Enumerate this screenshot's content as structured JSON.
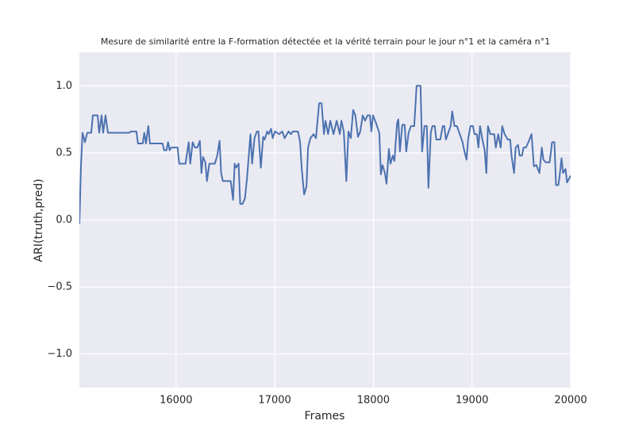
{
  "chart_data": {
    "type": "line",
    "title": "Mesure de similarité entre la F-formation détectée et la vérité terrain pour le jour n°1 et la caméra n°1",
    "xlabel": "Frames",
    "ylabel": "ARI(truth,pred)",
    "grid": true,
    "xlim": [
      15020,
      20000
    ],
    "ylim": [
      -1.25,
      1.25
    ],
    "xticks": [
      16000,
      17000,
      18000,
      19000,
      20000
    ],
    "yticks": [
      {
        "value": -1.0,
        "label": "−1.0"
      },
      {
        "value": -0.5,
        "label": "−0.5"
      },
      {
        "value": 0.0,
        "label": "0.0"
      },
      {
        "value": 0.5,
        "label": "0.5"
      },
      {
        "value": 1.0,
        "label": "1.0"
      }
    ],
    "x": [
      15020,
      15036,
      15052,
      15076,
      15100,
      15140,
      15157,
      15205,
      15221,
      15245,
      15261,
      15285,
      15309,
      15502,
      15526,
      15542,
      15598,
      15614,
      15662,
      15678,
      15695,
      15719,
      15735,
      15863,
      15879,
      15903,
      15919,
      15935,
      15951,
      16016,
      16032,
      16096,
      16128,
      16144,
      16168,
      16192,
      16216,
      16241,
      16257,
      16273,
      16297,
      16313,
      16337,
      16393,
      16417,
      16441,
      16457,
      16474,
      16554,
      16578,
      16594,
      16610,
      16634,
      16650,
      16674,
      16698,
      16719,
      16754,
      16771,
      16795,
      16819,
      16835,
      16859,
      16883,
      16899,
      16923,
      16939,
      16963,
      16979,
      17003,
      17044,
      17076,
      17100,
      17140,
      17164,
      17184,
      17236,
      17257,
      17273,
      17298,
      17322,
      17338,
      17362,
      17394,
      17418,
      17450,
      17475,
      17499,
      17515,
      17541,
      17563,
      17596,
      17628,
      17660,
      17676,
      17700,
      17726,
      17747,
      17771,
      17795,
      17817,
      17844,
      17867,
      17892,
      17916,
      17940,
      17964,
      17980,
      17996,
      18028,
      18060,
      18076,
      18092,
      18117,
      18133,
      18157,
      18173,
      18197,
      18213,
      18240,
      18253,
      18269,
      18293,
      18317,
      18333,
      18357,
      18381,
      18414,
      18438,
      18478,
      18494,
      18518,
      18542,
      18558,
      18582,
      18598,
      18622,
      18638,
      18678,
      18703,
      18719,
      18735,
      18759,
      18783,
      18799,
      18822,
      18847,
      18871,
      18904,
      18920,
      18944,
      18960,
      18984,
      19009,
      19025,
      19049,
      19065,
      19081,
      19105,
      19128,
      19145,
      19161,
      19185,
      19225,
      19241,
      19265,
      19290,
      19306,
      19330,
      19362,
      19386,
      19402,
      19426,
      19442,
      19466,
      19482,
      19506,
      19522,
      19546,
      19571,
      19603,
      19627,
      19651,
      19683,
      19707,
      19723,
      19747,
      19787,
      19811,
      19835,
      19851,
      19875,
      19891,
      19907,
      19923,
      19947,
      19963,
      20000
    ],
    "series": [
      {
        "color": "#4c72b0",
        "values": [
          -0.03,
          0.4,
          0.65,
          0.58,
          0.65,
          0.65,
          0.78,
          0.78,
          0.65,
          0.78,
          0.65,
          0.78,
          0.65,
          0.65,
          0.65,
          0.66,
          0.66,
          0.57,
          0.57,
          0.65,
          0.57,
          0.7,
          0.57,
          0.57,
          0.52,
          0.52,
          0.58,
          0.52,
          0.54,
          0.54,
          0.42,
          0.42,
          0.58,
          0.42,
          0.58,
          0.54,
          0.54,
          0.59,
          0.35,
          0.47,
          0.43,
          0.29,
          0.42,
          0.42,
          0.48,
          0.59,
          0.35,
          0.29,
          0.29,
          0.15,
          0.42,
          0.39,
          0.42,
          0.12,
          0.12,
          0.16,
          0.31,
          0.64,
          0.42,
          0.61,
          0.66,
          0.66,
          0.39,
          0.62,
          0.6,
          0.66,
          0.64,
          0.68,
          0.61,
          0.66,
          0.64,
          0.66,
          0.61,
          0.66,
          0.64,
          0.66,
          0.66,
          0.58,
          0.39,
          0.19,
          0.25,
          0.54,
          0.61,
          0.64,
          0.61,
          0.87,
          0.87,
          0.64,
          0.74,
          0.64,
          0.74,
          0.64,
          0.74,
          0.64,
          0.74,
          0.66,
          0.29,
          0.66,
          0.61,
          0.82,
          0.78,
          0.62,
          0.66,
          0.78,
          0.74,
          0.78,
          0.78,
          0.66,
          0.78,
          0.72,
          0.65,
          0.34,
          0.41,
          0.35,
          0.27,
          0.53,
          0.42,
          0.48,
          0.44,
          0.72,
          0.75,
          0.51,
          0.71,
          0.71,
          0.51,
          0.65,
          0.7,
          0.7,
          1.0,
          1.0,
          0.51,
          0.7,
          0.7,
          0.24,
          0.65,
          0.7,
          0.7,
          0.6,
          0.6,
          0.7,
          0.7,
          0.6,
          0.65,
          0.7,
          0.81,
          0.7,
          0.7,
          0.65,
          0.58,
          0.52,
          0.45,
          0.6,
          0.7,
          0.7,
          0.64,
          0.64,
          0.54,
          0.7,
          0.6,
          0.52,
          0.35,
          0.7,
          0.64,
          0.64,
          0.54,
          0.64,
          0.54,
          0.7,
          0.64,
          0.6,
          0.6,
          0.47,
          0.35,
          0.54,
          0.56,
          0.48,
          0.48,
          0.54,
          0.54,
          0.58,
          0.64,
          0.4,
          0.41,
          0.35,
          0.54,
          0.45,
          0.43,
          0.43,
          0.58,
          0.58,
          0.26,
          0.26,
          0.35,
          0.46,
          0.35,
          0.38,
          0.28,
          0.33
        ]
      }
    ]
  }
}
